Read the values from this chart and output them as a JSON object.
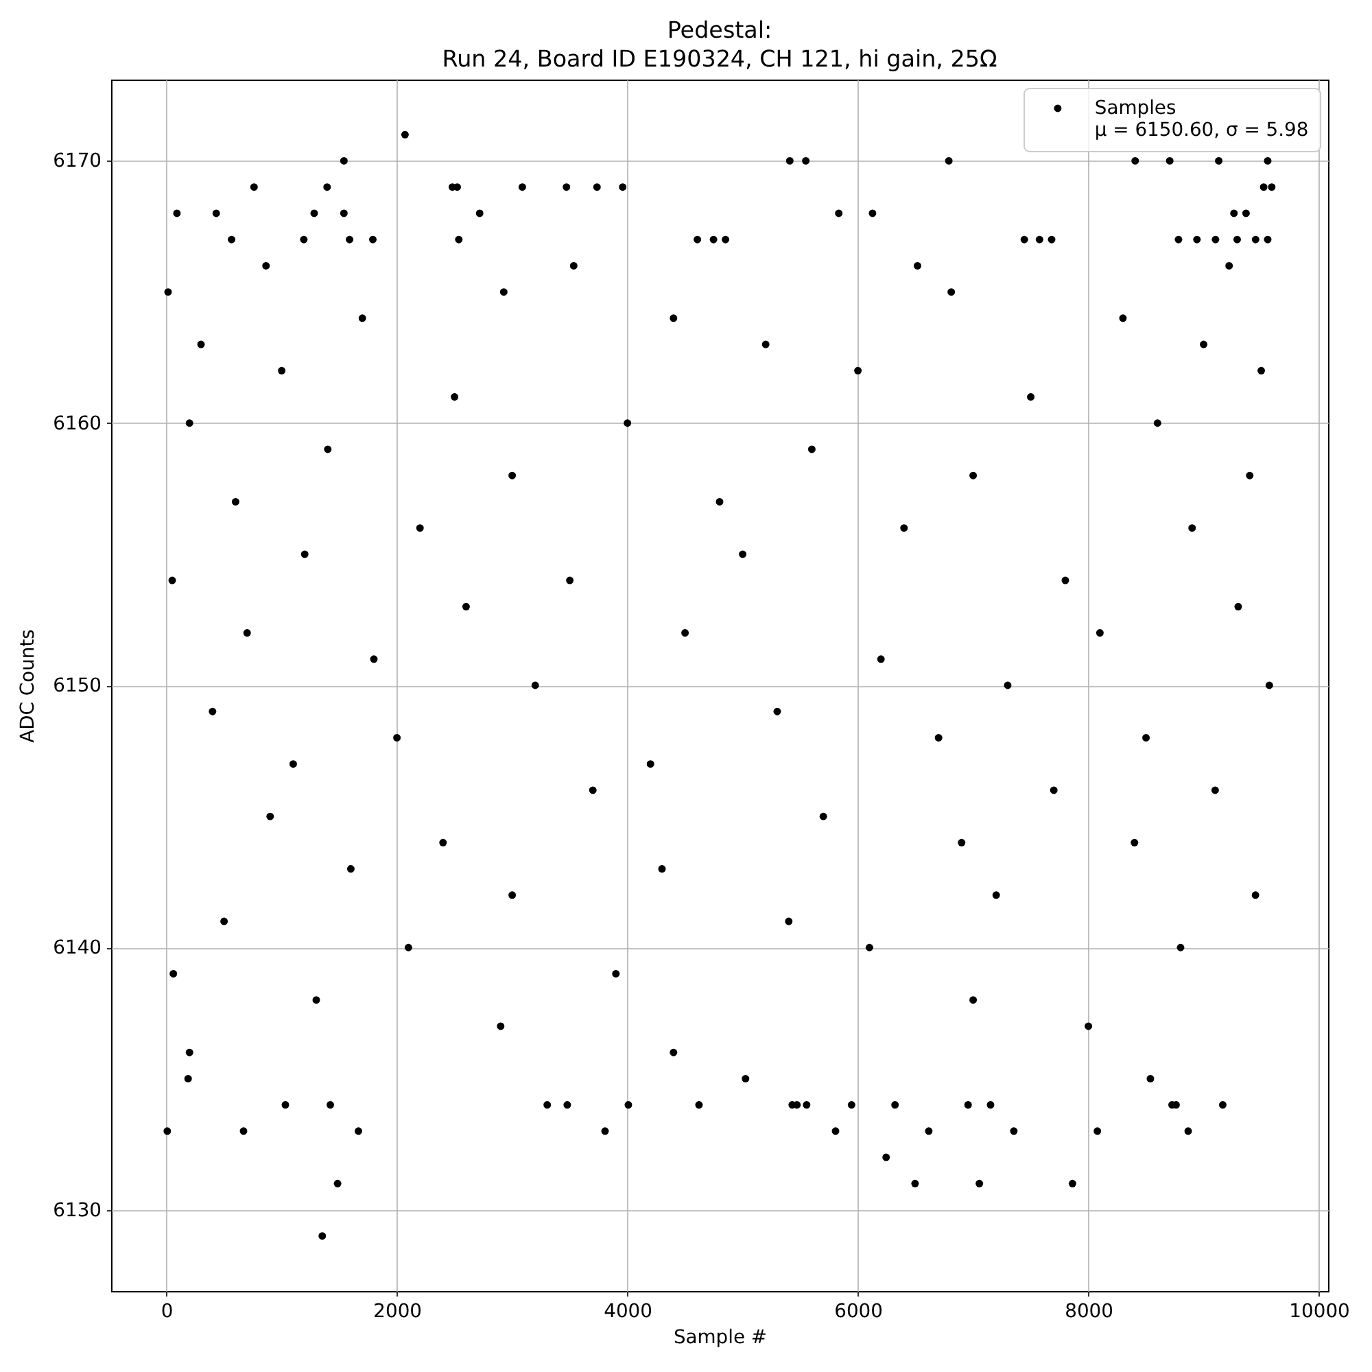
{
  "chart_data": {
    "type": "scatter",
    "title": "Pedestal:",
    "subtitle": "Run 24, Board ID E190324, CH 121, hi gain, 25Ω",
    "xlabel": "Sample #",
    "ylabel": "ADC Counts",
    "annotations": [
      "μ = 6150.60, σ = 5.98"
    ],
    "series": [
      {
        "name": "Samples",
        "color": "#000000",
        "x": [
          2070,
          1540,
          5409,
          5548,
          6789,
          8406,
          8706,
          9131,
          9556,
          760,
          1394,
          2481,
          2523,
          3088,
          3471,
          3736,
          3959,
          9521,
          9591,
          91,
          432,
          1282,
          1540,
          2718,
          5834,
          6127,
          9263,
          9368,
          565,
          1192,
          1589,
          1791,
          2537,
          4607,
          4747,
          4851,
          7444,
          7576,
          7681,
          8782,
          8942,
          9103,
          9291,
          9451,
          9556,
          864,
          3534,
          6517,
          9221,
          14,
          2927,
          6810,
          1700,
          4400,
          8300,
          300,
          5200,
          9000,
          1000,
          6000,
          9500,
          2500,
          7500,
          200,
          4000,
          8600,
          1400,
          5600,
          3000,
          7000,
          9400,
          600,
          4800,
          2200,
          6400,
          8900,
          1200,
          5000,
          50,
          3500,
          7800,
          2600,
          9300,
          700,
          4500,
          8100,
          1800,
          6200,
          3200,
          7300,
          9570,
          400,
          5300,
          2000,
          6700,
          8500,
          1100,
          4200,
          3700,
          7700,
          9100,
          900,
          5700,
          2400,
          6900,
          8400,
          1600,
          4300,
          3000,
          7200,
          9450,
          500,
          5400,
          2100,
          6100,
          8800,
          60,
          3900,
          1300,
          7000,
          2900,
          8000,
          200,
          4400,
          188,
          5025,
          8538,
          1032,
          1422,
          3304,
          3478,
          4008,
          4621,
          5430,
          5471,
          5555,
          5945,
          6322,
          6956,
          7151,
          8726,
          8761,
          9166,
          7,
          669,
          1666,
          3806,
          5806,
          6615,
          7353,
          8078,
          8866,
          6245,
          1485,
          6496,
          7054,
          7862,
          1352
        ],
        "values": [
          6171,
          6170,
          6170,
          6170,
          6170,
          6170,
          6170,
          6170,
          6170,
          6169,
          6169,
          6169,
          6169,
          6169,
          6169,
          6169,
          6169,
          6169,
          6169,
          6168,
          6168,
          6168,
          6168,
          6168,
          6168,
          6168,
          6168,
          6168,
          6167,
          6167,
          6167,
          6167,
          6167,
          6167,
          6167,
          6167,
          6167,
          6167,
          6167,
          6167,
          6167,
          6167,
          6167,
          6167,
          6167,
          6166,
          6166,
          6166,
          6166,
          6165,
          6165,
          6165,
          6164,
          6164,
          6164,
          6163,
          6163,
          6163,
          6162,
          6162,
          6162,
          6161,
          6161,
          6160,
          6160,
          6160,
          6159,
          6159,
          6158,
          6158,
          6158,
          6157,
          6157,
          6156,
          6156,
          6156,
          6155,
          6155,
          6154,
          6154,
          6154,
          6153,
          6153,
          6152,
          6152,
          6152,
          6151,
          6151,
          6150,
          6150,
          6150,
          6149,
          6149,
          6148,
          6148,
          6148,
          6147,
          6147,
          6146,
          6146,
          6146,
          6145,
          6145,
          6144,
          6144,
          6144,
          6143,
          6143,
          6142,
          6142,
          6142,
          6141,
          6141,
          6140,
          6140,
          6140,
          6139,
          6139,
          6138,
          6138,
          6137,
          6137,
          6136,
          6136,
          6135,
          6135,
          6135,
          6134,
          6134,
          6134,
          6134,
          6134,
          6134,
          6134,
          6134,
          6134,
          6134,
          6134,
          6134,
          6134,
          6134,
          6134,
          6134,
          6133,
          6133,
          6133,
          6133,
          6133,
          6133,
          6133,
          6133,
          6133,
          6132,
          6131,
          6131,
          6131,
          6131,
          6129
        ]
      }
    ],
    "xlim": [
      -480,
      10080
    ],
    "ylim": [
      6126.9,
      6173.1
    ],
    "xticks": [
      0,
      2000,
      4000,
      6000,
      8000,
      10000
    ],
    "yticks": [
      6130,
      6140,
      6150,
      6160,
      6170
    ],
    "grid": true,
    "legend": "top right",
    "marker": "circle"
  }
}
